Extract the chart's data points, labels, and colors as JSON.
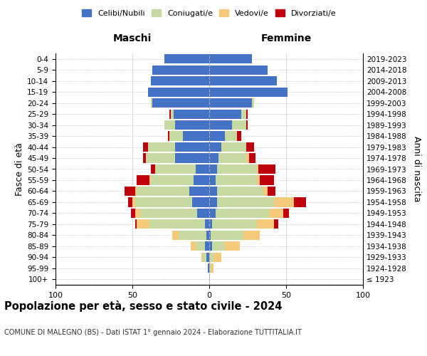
{
  "age_groups": [
    "100+",
    "95-99",
    "90-94",
    "85-89",
    "80-84",
    "75-79",
    "70-74",
    "65-69",
    "60-64",
    "55-59",
    "50-54",
    "45-49",
    "40-44",
    "35-39",
    "30-34",
    "25-29",
    "20-24",
    "15-19",
    "10-14",
    "5-9",
    "0-4"
  ],
  "birth_years": [
    "≤ 1923",
    "1924-1928",
    "1929-1933",
    "1934-1938",
    "1939-1943",
    "1944-1948",
    "1949-1953",
    "1954-1958",
    "1959-1963",
    "1964-1968",
    "1969-1973",
    "1974-1978",
    "1979-1983",
    "1984-1988",
    "1989-1993",
    "1994-1998",
    "1999-2003",
    "2004-2008",
    "2009-2013",
    "2014-2018",
    "2019-2023"
  ],
  "colors": {
    "celibe": "#4472C4",
    "coniugato": "#C5D9A0",
    "vedovo": "#F5C97A",
    "divorziato": "#C0000C"
  },
  "maschi": {
    "celibe": [
      0,
      1,
      2,
      3,
      2,
      3,
      8,
      11,
      13,
      10,
      9,
      22,
      22,
      17,
      22,
      23,
      37,
      40,
      38,
      37,
      29
    ],
    "coniugato": [
      0,
      0,
      2,
      6,
      18,
      36,
      37,
      37,
      34,
      28,
      26,
      19,
      18,
      9,
      7,
      2,
      1,
      0,
      0,
      0,
      0
    ],
    "vedovo": [
      0,
      0,
      1,
      3,
      4,
      8,
      3,
      2,
      1,
      1,
      0,
      0,
      0,
      0,
      0,
      0,
      0,
      0,
      0,
      0,
      0
    ],
    "divorziato": [
      0,
      0,
      0,
      0,
      0,
      1,
      3,
      3,
      7,
      8,
      3,
      2,
      3,
      1,
      0,
      1,
      0,
      0,
      0,
      0,
      0
    ]
  },
  "femmine": {
    "nubile": [
      0,
      0,
      0,
      2,
      1,
      2,
      4,
      5,
      5,
      4,
      5,
      6,
      8,
      10,
      15,
      21,
      28,
      51,
      44,
      38,
      28
    ],
    "coniugata": [
      0,
      1,
      3,
      8,
      21,
      29,
      35,
      37,
      30,
      27,
      26,
      18,
      16,
      8,
      9,
      3,
      1,
      0,
      0,
      0,
      0
    ],
    "vedova": [
      0,
      2,
      5,
      10,
      11,
      11,
      9,
      13,
      3,
      2,
      1,
      2,
      0,
      0,
      0,
      0,
      0,
      0,
      0,
      0,
      0
    ],
    "divorziata": [
      0,
      0,
      0,
      0,
      0,
      3,
      4,
      8,
      5,
      9,
      11,
      4,
      5,
      3,
      1,
      1,
      0,
      0,
      0,
      0,
      0
    ]
  },
  "xlim": 100,
  "xticks": [
    -100,
    -50,
    0,
    50,
    100
  ],
  "xticklabels": [
    "100",
    "50",
    "0",
    "50",
    "100"
  ],
  "title": "Popolazione per età, sesso e stato civile - 2024",
  "subtitle": "COMUNE DI MALEGNO (BS) - Dati ISTAT 1° gennaio 2024 - Elaborazione TUTTITALIA.IT",
  "ylabel_left": "Fasce di età",
  "ylabel_right": "Anni di nascita",
  "header_maschi": "Maschi",
  "header_femmine": "Femmine",
  "legend_labels": [
    "Celibi/Nubili",
    "Coniugati/e",
    "Vedovi/e",
    "Divorziati/e"
  ],
  "background_color": "#ffffff",
  "bar_height": 0.85
}
